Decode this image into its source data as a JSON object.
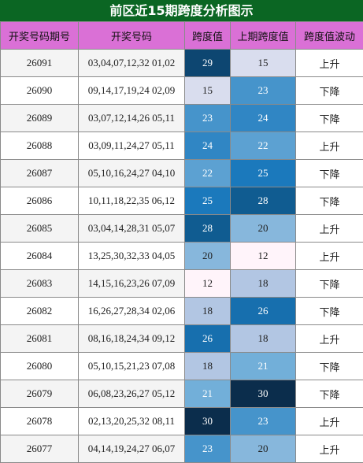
{
  "title": "前区近15期跨度分析图示",
  "table": {
    "headers": [
      "开奖号码期号",
      "开奖号码",
      "跨度值",
      "上期跨度值",
      "跨度值波动"
    ],
    "rows": [
      [
        "26091",
        "03,04,07,12,32 01,02",
        29,
        15,
        "上升"
      ],
      [
        "26090",
        "09,14,17,19,24 02,09",
        15,
        23,
        "下降"
      ],
      [
        "26089",
        "03,07,12,14,26 05,11",
        23,
        24,
        "下降"
      ],
      [
        "26088",
        "03,09,11,24,27 05,11",
        24,
        22,
        "上升"
      ],
      [
        "26087",
        "05,10,16,24,27 04,10",
        22,
        25,
        "下降"
      ],
      [
        "26086",
        "10,11,18,22,35 06,12",
        25,
        28,
        "下降"
      ],
      [
        "26085",
        "03,04,14,28,31 05,07",
        28,
        20,
        "上升"
      ],
      [
        "26084",
        "13,25,30,32,33 04,05",
        20,
        12,
        "上升"
      ],
      [
        "26083",
        "14,15,16,23,26 07,09",
        12,
        18,
        "下降"
      ],
      [
        "26082",
        "16,26,27,28,34 02,06",
        18,
        26,
        "下降"
      ],
      [
        "26081",
        "08,16,18,24,34 09,12",
        26,
        18,
        "上升"
      ],
      [
        "26080",
        "05,10,15,21,23 07,08",
        18,
        21,
        "下降"
      ],
      [
        "26079",
        "06,08,23,26,27 05,12",
        21,
        30,
        "下降"
      ],
      [
        "26078",
        "02,13,20,25,32 08,11",
        30,
        23,
        "上升"
      ],
      [
        "26077",
        "04,14,19,24,27 06,07",
        23,
        20,
        "上升"
      ]
    ]
  }
}
